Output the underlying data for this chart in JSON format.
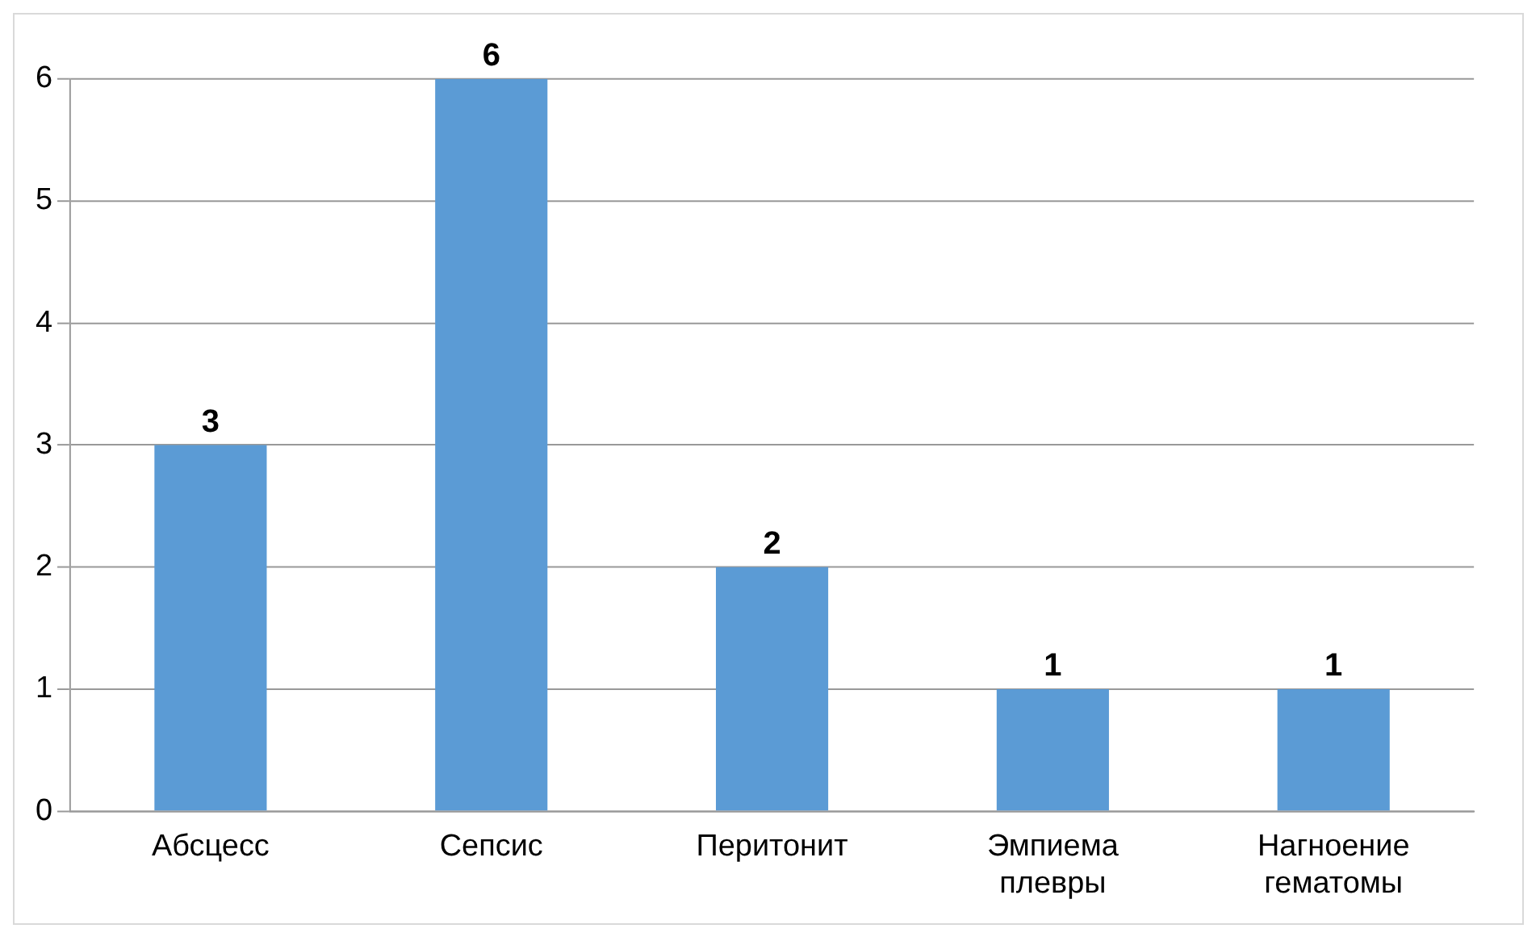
{
  "chart_data": {
    "type": "bar",
    "categories": [
      "Абсцесс",
      "Сепсис",
      "Перитонит",
      "Эмпиема плевры",
      "Нагноение гематомы"
    ],
    "values": [
      3,
      6,
      2,
      1,
      1
    ],
    "color": "#5b9bd5",
    "ylim": [
      0,
      6
    ],
    "yticks": [
      0,
      1,
      2,
      3,
      4,
      5,
      6
    ],
    "grid": "y",
    "data_labels": true
  }
}
